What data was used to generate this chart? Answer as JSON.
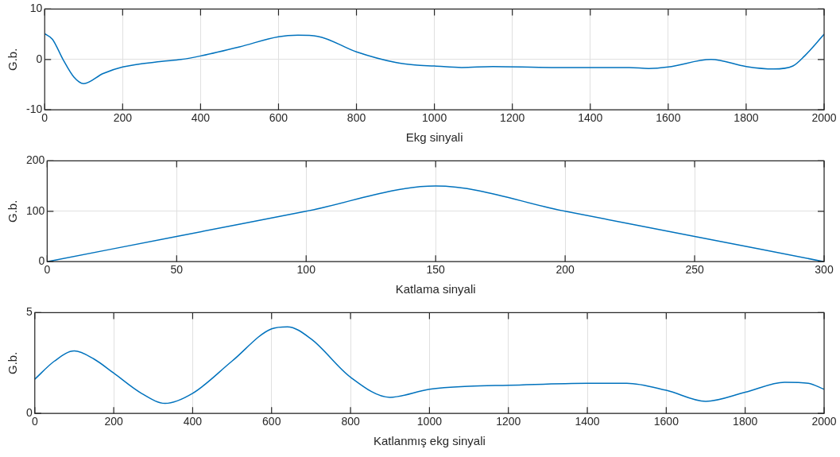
{
  "chart_data": [
    {
      "type": "line",
      "xlabel": "Ekg sinyali",
      "ylabel": "G.b.",
      "grid": true,
      "legend": false,
      "xlim": [
        0,
        2000
      ],
      "xticks": [
        0,
        200,
        400,
        600,
        800,
        1000,
        1200,
        1400,
        1600,
        1800,
        2000
      ],
      "ylim": [
        -10,
        10
      ],
      "yticks": [
        -10,
        0,
        10
      ],
      "series": [
        {
          "color": "#0072bd",
          "x": [
            0,
            20,
            47,
            75,
            100,
            150,
            200,
            300,
            350,
            400,
            500,
            600,
            650,
            700,
            800,
            900,
            950,
            1000,
            1070,
            1150,
            1300,
            1400,
            1500,
            1550,
            1600,
            1710,
            1800,
            1870,
            1920,
            1950,
            2000
          ],
          "values": [
            5.1,
            4,
            0,
            -3.5,
            -4.8,
            -2.8,
            -1.5,
            -0.4,
            0,
            0.7,
            2.5,
            4.5,
            4.8,
            4.6,
            1.5,
            -0.6,
            -1.1,
            -1.3,
            -1.6,
            -1.4,
            -1.6,
            -1.6,
            -1.6,
            -1.8,
            -1.5,
            0,
            -1.4,
            -1.9,
            -1.3,
            0.7,
            5.0
          ]
        }
      ]
    },
    {
      "type": "line",
      "xlabel": "Katlama sinyali",
      "ylabel": "G.b.",
      "grid": true,
      "legend": false,
      "xlim": [
        0,
        300
      ],
      "xticks": [
        0,
        50,
        100,
        150,
        200,
        250,
        300
      ],
      "ylim": [
        0,
        200
      ],
      "yticks": [
        0,
        100,
        200
      ],
      "series": [
        {
          "color": "#0072bd",
          "x": [
            0,
            50,
            100,
            150,
            200,
            250,
            300
          ],
          "values": [
            0,
            50,
            100,
            150,
            100,
            50,
            0
          ]
        }
      ]
    },
    {
      "type": "line",
      "xlabel": "Katlanmış ekg sinyali",
      "ylabel": "G.b.",
      "grid": true,
      "legend": false,
      "xlim": [
        0,
        2000
      ],
      "xticks": [
        0,
        200,
        400,
        600,
        800,
        1000,
        1200,
        1400,
        1600,
        1800,
        2000
      ],
      "ylim": [
        0,
        5
      ],
      "yticks": [
        0,
        5
      ],
      "series": [
        {
          "color": "#0072bd",
          "x": [
            0,
            50,
            100,
            150,
            200,
            270,
            330,
            400,
            500,
            600,
            640,
            700,
            800,
            900,
            1000,
            1100,
            1200,
            1400,
            1500,
            1600,
            1700,
            1800,
            1900,
            1960,
            2000
          ],
          "values": [
            1.7,
            2.6,
            3.1,
            2.7,
            2.0,
            1.0,
            0.5,
            1.0,
            2.6,
            4.2,
            4.3,
            3.7,
            1.8,
            0.8,
            1.2,
            1.35,
            1.4,
            1.5,
            1.5,
            1.15,
            0.6,
            1.05,
            1.55,
            1.5,
            1.2
          ]
        }
      ]
    }
  ]
}
